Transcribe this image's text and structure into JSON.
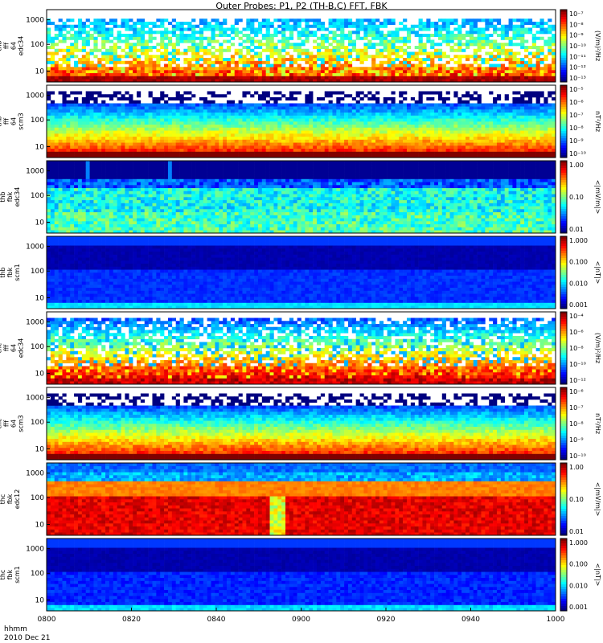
{
  "title": "Outer Probes: P1, P2 (TH-B,C) FFT, FBK",
  "footer": {
    "time_label": "hhmm",
    "date_label": "2010 Dec 21"
  },
  "chart_data": {
    "type": "heatmap",
    "x_ticks": [
      "0800",
      "0820",
      "0840",
      "0900",
      "0920",
      "0940",
      "1000"
    ],
    "panels": [
      {
        "ylabel": [
          "thb",
          "fff",
          "64",
          "edc34"
        ],
        "yticks": [
          "1000",
          "100",
          "10"
        ],
        "cbar_label": "(V/m)²/Hz",
        "cbar_ticks": [
          "10⁻⁷",
          "10⁻⁸",
          "10⁻⁹",
          "10⁻¹⁰",
          "10⁻¹¹",
          "10⁻¹²",
          "10⁻¹³"
        ],
        "pattern": "spiky"
      },
      {
        "ylabel": [
          "thb",
          "fff",
          "64",
          "scm3"
        ],
        "yticks": [
          "1000",
          "100",
          "10"
        ],
        "cbar_label": "nT²/Hz",
        "cbar_ticks": [
          "10⁻⁵",
          "10⁻⁶",
          "10⁻⁷",
          "10⁻⁸",
          "10⁻⁹",
          "10⁻¹⁰"
        ],
        "pattern": "scm"
      },
      {
        "ylabel": [
          "thb",
          "fbk",
          "edc34"
        ],
        "yticks": [
          "1000",
          "100",
          "10"
        ],
        "cbar_label": "<|mV/m|>",
        "cbar_ticks": [
          "1.00",
          "0.10",
          "0.01"
        ],
        "pattern": "fbk_e_b"
      },
      {
        "ylabel": [
          "thb",
          "fbk",
          "scm1"
        ],
        "yticks": [
          "1000",
          "100",
          "10"
        ],
        "cbar_label": "<|nT|>",
        "cbar_ticks": [
          "1.000",
          "0.100",
          "0.010",
          "0.001"
        ],
        "pattern": "fbk_b"
      },
      {
        "ylabel": [
          "thc",
          "fff",
          "64",
          "edc34"
        ],
        "yticks": [
          "1000",
          "100",
          "10"
        ],
        "cbar_label": "(V/m)²/Hz",
        "cbar_ticks": [
          "10⁻⁴",
          "10⁻⁶",
          "10⁻⁸",
          "10⁻¹⁰",
          "10⁻¹²"
        ],
        "pattern": "spiky2"
      },
      {
        "ylabel": [
          "thc",
          "fff",
          "64",
          "scm3"
        ],
        "yticks": [
          "1000",
          "100",
          "10"
        ],
        "cbar_label": "nT²/Hz",
        "cbar_ticks": [
          "10⁻⁶",
          "10⁻⁷",
          "10⁻⁸",
          "10⁻⁹",
          "10⁻¹⁰"
        ],
        "pattern": "scm"
      },
      {
        "ylabel": [
          "thc",
          "fbk",
          "edc12"
        ],
        "yticks": [
          "1000",
          "100",
          "10"
        ],
        "cbar_label": "<|mV/m|>",
        "cbar_ticks": [
          "1.00",
          "0.10",
          "0.01"
        ],
        "pattern": "fbk_e_c"
      },
      {
        "ylabel": [
          "thc",
          "fbk",
          "scm1"
        ],
        "yticks": [
          "1000",
          "100",
          "10"
        ],
        "cbar_label": "<|nT|>",
        "cbar_ticks": [
          "1.000",
          "0.100",
          "0.010",
          "0.001"
        ],
        "pattern": "fbk_b2"
      }
    ]
  }
}
